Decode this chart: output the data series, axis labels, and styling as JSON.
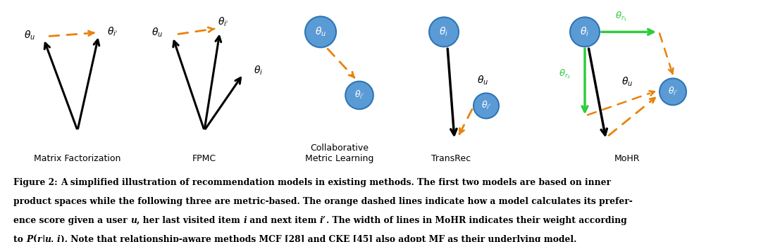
{
  "bg_color": "#ffffff",
  "orange": "#E8820C",
  "black": "#000000",
  "green": "#2ECC40",
  "blue_node": "#5B9BD5",
  "blue_edge": "#2E75B6",
  "labels": [
    "Matrix Factorization",
    "FPMC",
    "Collaborative\nMetric Learning",
    "TransRec",
    "MoHR"
  ],
  "caption_line1": "Figure 2: A simplified illustration of recommendation models in existing methods. The first two models are based on inner",
  "caption_line2": "product spaces while the following three are metric-based. The orange dashed lines indicate how a model calculates its prefer-",
  "caption_line3": "ence score given a user u, her last visited item i and next item i’. The width of lines in MoHR indicates their weight according",
  "caption_line4": "to P(r|u, i). Note that relationship-aware methods MCF [28] and CKE [45] also adopt MF as their underlying model."
}
